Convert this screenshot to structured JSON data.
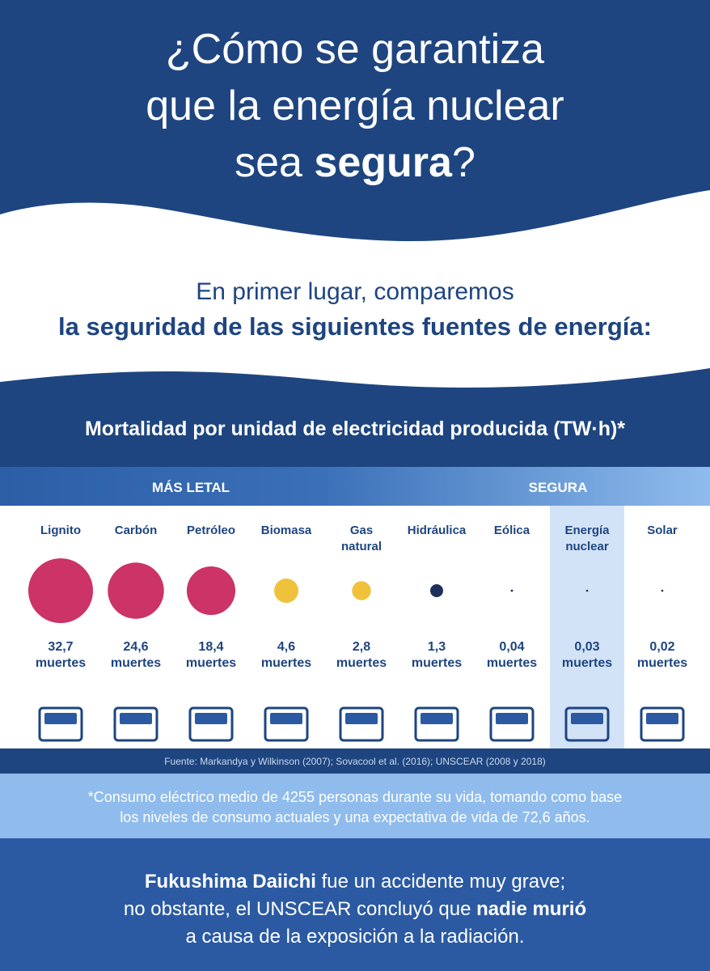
{
  "header": {
    "title": {
      "line1": "¿Cómo se garantiza",
      "line2": "que la energía nuclear",
      "line3_start": "sea ",
      "line3_bold": "segura",
      "line3_end": "?"
    }
  },
  "intro": {
    "line1": "En primer lugar, comparemos",
    "line2": "la seguridad de las siguientes fuentes de energía:"
  },
  "chart_data": {
    "type": "bubble",
    "title": "Mortalidad por unidad de electricidad producida (TW·h)*",
    "scale_left": "MÁS LETAL",
    "scale_right": "SEGURA",
    "unit": "muertes",
    "highlight": "Energía nuclear",
    "categories": [
      [
        "Lignito"
      ],
      [
        "Carbón"
      ],
      [
        "Petróleo"
      ],
      [
        "Biomasa"
      ],
      [
        "Gas",
        "natural"
      ],
      [
        "Hidráulica"
      ],
      [
        "Eólica"
      ],
      [
        "Energía",
        "nuclear"
      ],
      [
        "Solar"
      ]
    ],
    "values": [
      32.7,
      24.6,
      18.4,
      4.6,
      2.8,
      1.3,
      0.04,
      0.03,
      0.02
    ],
    "value_labels": [
      "32,7",
      "24,6",
      "18,4",
      "4,6",
      "2,8",
      "1,3",
      "0,04",
      "0,03",
      "0,02"
    ],
    "colors": [
      "#cc3366",
      "#cc3366",
      "#cc3366",
      "#f0c23c",
      "#f0c23c",
      "#1d2f5a",
      "#1d2f5a",
      "#1d2f5a",
      "#1d2f5a"
    ],
    "source": "Fuente: Markandya y Wilkinson (2007); Sovacool et al. (2016); UNSCEAR (2008 y 2018)"
  },
  "note": {
    "line1": "*Consumo eléctrico medio de 4255 personas durante su vida, tomando como base",
    "line2": "los niveles de consumo actuales y una expectativa de vida de 72,6 años."
  },
  "footer": {
    "line1_bold": "Fukushima Daiichi",
    "line1_rest": " fue un accidente muy grave;",
    "line2_start": "no obstante, el UNSCEAR concluyó que ",
    "line2_bold": "nadie murió",
    "line3": "a causa de la exposición a la radiación."
  }
}
